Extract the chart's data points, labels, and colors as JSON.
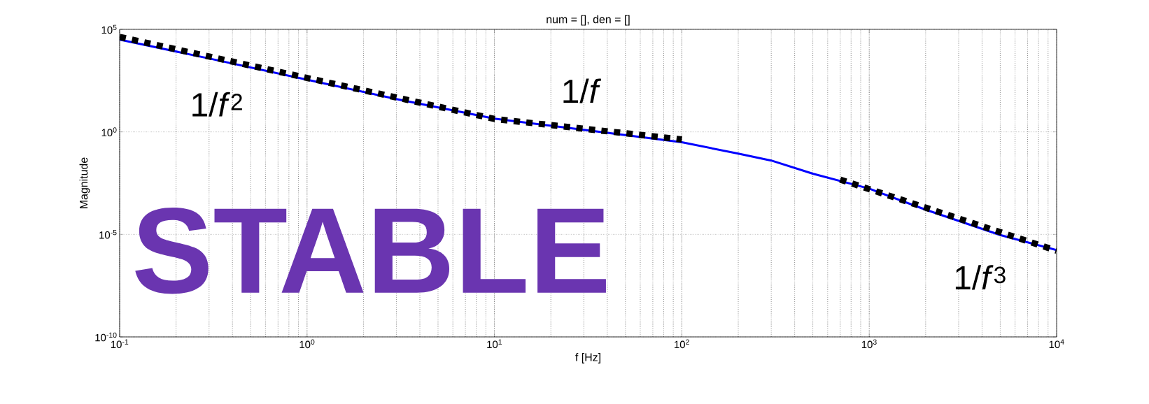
{
  "chart_data": {
    "type": "line",
    "title": "num = [], den = []",
    "xlabel": "f [Hz]",
    "ylabel": "Magnitude",
    "log": "xy",
    "grid": true,
    "xlim": [
      0.1,
      10000
    ],
    "ylim": [
      1e-10,
      100000
    ],
    "xticks": [
      {
        "value": 0.1,
        "label": "10$^{-1}$"
      },
      {
        "value": 1,
        "label": "10$^{0}$"
      },
      {
        "value": 10,
        "label": "10$^{1}$"
      },
      {
        "value": 100,
        "label": "10$^{2}$"
      },
      {
        "value": 1000,
        "label": "10$^{3}$"
      },
      {
        "value": 10000,
        "label": "10$^{4}$"
      }
    ],
    "yticks": [
      {
        "value": 1e-10,
        "label": "10$^{-10}$"
      },
      {
        "value": 1e-05,
        "label": "10$^{-5}$"
      },
      {
        "value": 1,
        "label": "10$^{0}$"
      },
      {
        "value": 100000,
        "label": "10$^{5}$"
      }
    ],
    "annotations": [
      "1/*f*$^{2}$",
      "1/*f*",
      "1/*f*$^{3}$",
      "STABLE"
    ],
    "series": [
      {
        "color": "#0000ff",
        "line_style": "solid",
        "x": [
          0.1,
          0.3,
          1,
          3,
          10,
          30,
          100,
          200,
          300,
          500,
          1000,
          2000,
          5000,
          10000
        ],
        "values": [
          31600,
          3800,
          350,
          40,
          4.4,
          1.26,
          0.31,
          0.087,
          0.04,
          0.0091,
          0.0017,
          0.00016,
          9.3e-06,
          1.7e-06
        ]
      },
      {
        "color": "#000000",
        "line_style": "dashed",
        "x": [
          0.1,
          10,
          100
        ],
        "values": [
          42700,
          4.27,
          0.427
        ]
      },
      {
        "color": "#000000",
        "line_style": "dashed",
        "x": [
          700,
          10000
        ],
        "values": [
          0.0047,
          1.6e-06
        ]
      }
    ]
  }
}
